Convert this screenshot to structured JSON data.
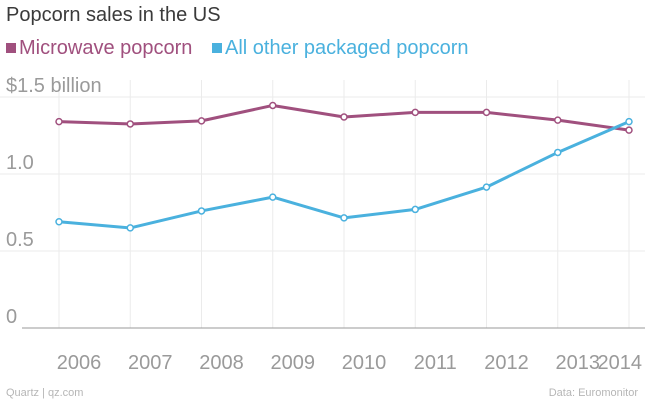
{
  "chart_data": {
    "type": "line",
    "title": "Popcorn sales in the US",
    "categories": [
      "2006",
      "2007",
      "2008",
      "2009",
      "2010",
      "2011",
      "2012",
      "2013",
      "2014"
    ],
    "series": [
      {
        "name": "Microwave popcorn",
        "color": "#a0507e",
        "values": [
          1.34,
          1.325,
          1.345,
          1.445,
          1.37,
          1.4,
          1.4,
          1.35,
          1.285
        ]
      },
      {
        "name": "All other packaged popcorn",
        "color": "#4ab1de",
        "values": [
          0.69,
          0.65,
          0.76,
          0.85,
          0.715,
          0.77,
          0.915,
          1.14,
          1.34
        ]
      }
    ],
    "ylim": [
      0,
      1.5
    ],
    "yticks": [
      0,
      0.5,
      1.0,
      1.5
    ],
    "ytick_labels": [
      "0",
      "0.5",
      "1.0",
      "$1.5 billion"
    ],
    "grid": true,
    "xlabel": "",
    "ylabel": "",
    "legend_position": "top-left"
  },
  "footer": {
    "source_left": "Quartz | qz.com",
    "source_right": "Data: Euromonitor"
  },
  "colors": {
    "grid": "#ebebeb",
    "baseline": "#9a9a9a",
    "tick_text": "#9a9a9a",
    "title": "#3a3a3a"
  }
}
